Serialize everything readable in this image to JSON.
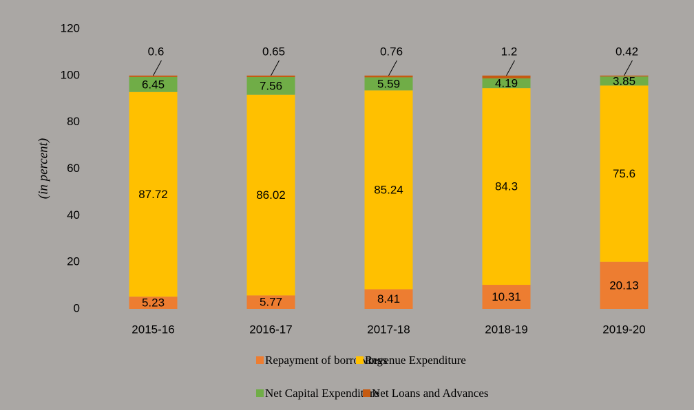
{
  "chart_data": {
    "type": "stacked_bar",
    "y_axis_label": "(in percent)",
    "categories": [
      "2015-16",
      "2016-17",
      "2017-18",
      "2018-19",
      "2019-20"
    ],
    "series": [
      {
        "name": "Repayment of borrowings",
        "color": "#ed7d31",
        "values": [
          5.23,
          5.77,
          8.41,
          10.31,
          20.13
        ]
      },
      {
        "name": "Revenue Expenditure",
        "color": "#ffc000",
        "values": [
          87.72,
          86.02,
          85.24,
          84.3,
          75.6
        ]
      },
      {
        "name": "Net Capital Expenditure",
        "color": "#70ad47",
        "values": [
          6.45,
          7.56,
          5.59,
          4.19,
          3.85
        ]
      },
      {
        "name": "Net Loans and Advances",
        "color": "#c55a11",
        "values": [
          0.6,
          0.65,
          0.76,
          1.2,
          0.42
        ]
      }
    ],
    "ylim": [
      0,
      120
    ],
    "yticks": [
      0,
      20,
      40,
      60,
      80,
      100,
      120
    ],
    "grid": false
  }
}
